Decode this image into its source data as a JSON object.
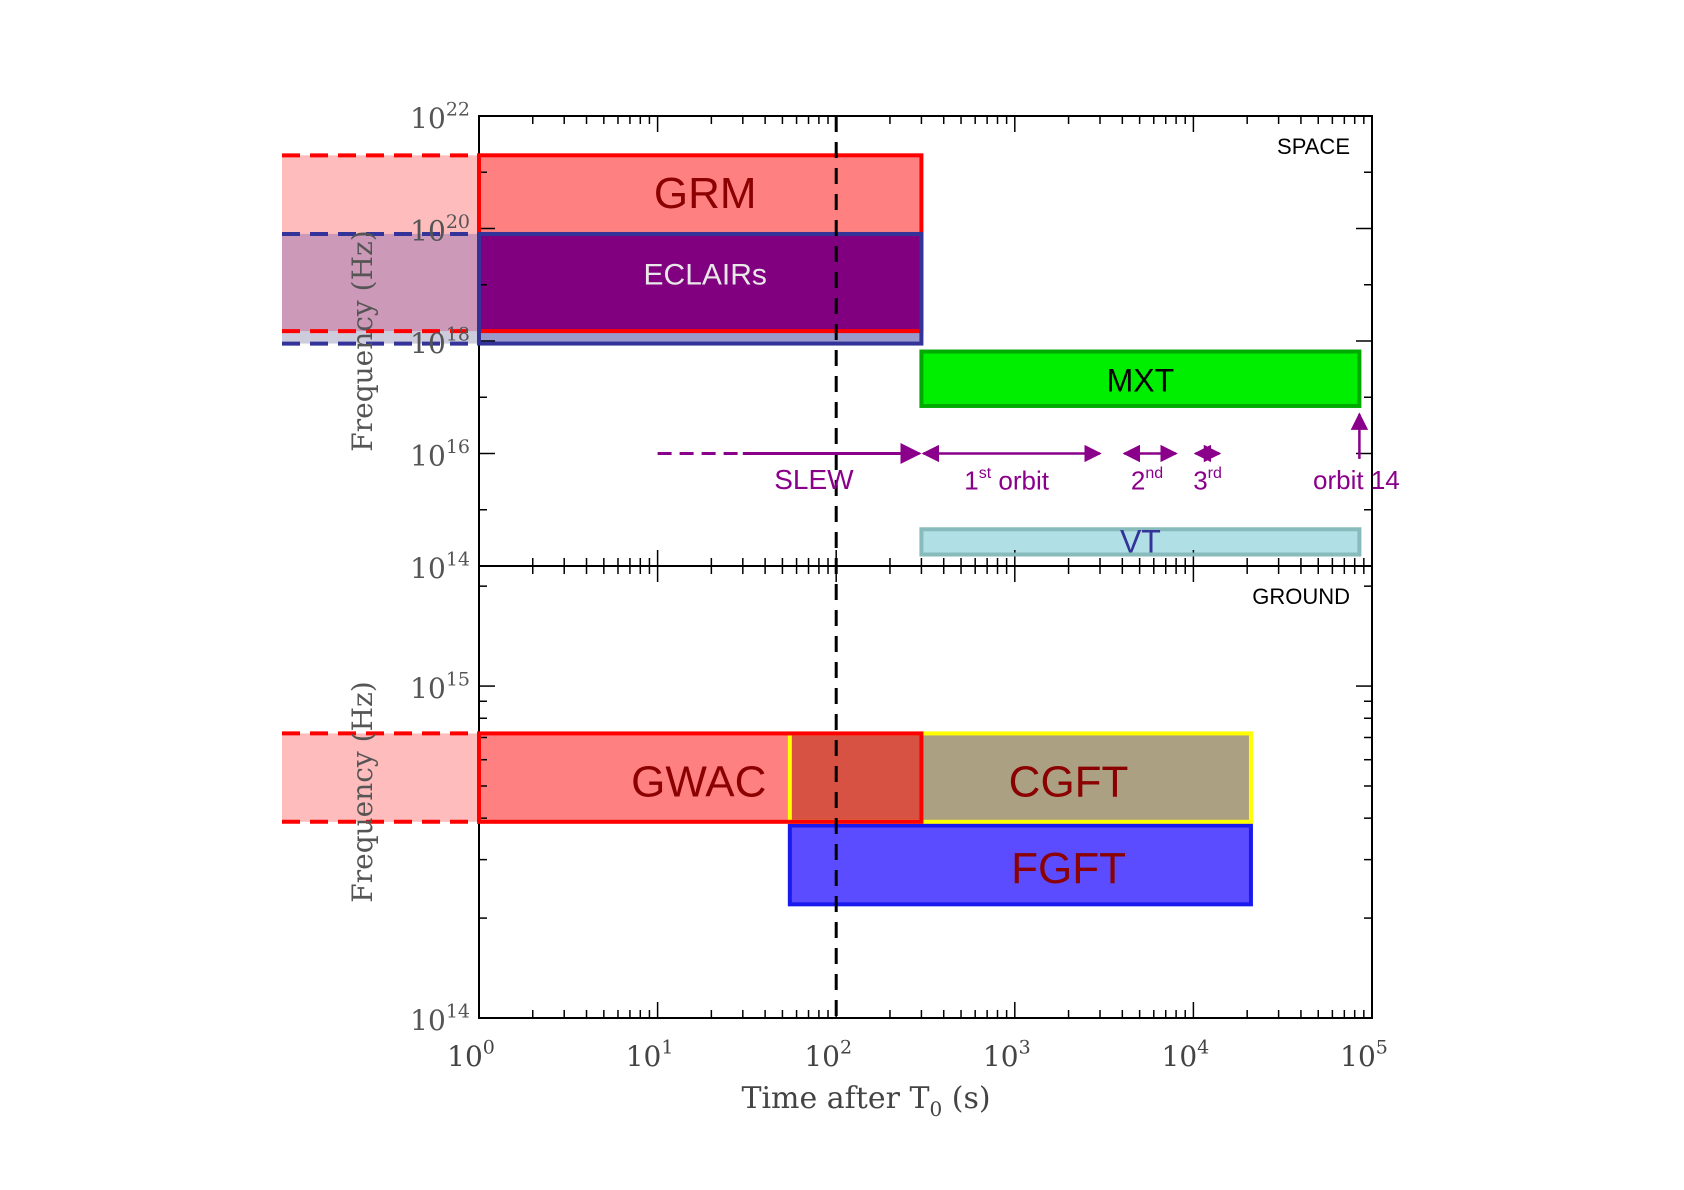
{
  "chart_data": {
    "type": "timeline",
    "x_axis": {
      "label_main": "Time after T",
      "label_sub": "0",
      "label_unit": " (s)",
      "scale": "log",
      "range": [
        1,
        100000
      ],
      "ticks": [
        {
          "value": 1,
          "base": "10",
          "exp": "0"
        },
        {
          "value": 10,
          "base": "10",
          "exp": "1"
        },
        {
          "value": 100,
          "base": "10",
          "exp": "2"
        },
        {
          "value": 1000,
          "base": "10",
          "exp": "3"
        },
        {
          "value": 10000,
          "base": "10",
          "exp": "4"
        },
        {
          "value": 100000,
          "base": "10",
          "exp": "5"
        }
      ]
    },
    "reference_line": {
      "x": 100,
      "style": "dashed"
    },
    "panels": [
      {
        "id": "space",
        "title": "SPACE",
        "ylabel": "Frequency (Hz)",
        "y_scale": "log",
        "y_range": [
          100000000000000.0,
          1e+22
        ],
        "y_ticks": [
          {
            "value": 100000000000000.0,
            "base": "10",
            "exp": "14"
          },
          {
            "value": 1e+16,
            "base": "10",
            "exp": "16"
          },
          {
            "value": 1e+18,
            "base": "10",
            "exp": "18"
          },
          {
            "value": 1e+20,
            "base": "10",
            "exp": "20"
          },
          {
            "value": 1e+22,
            "base": "10",
            "exp": "22"
          }
        ],
        "bands": [
          {
            "name": "GRM",
            "t_start": 1,
            "t_end": 300,
            "f_low": 1.5e+18,
            "f_high": 2e+21,
            "fill": "#ff8080",
            "stroke": "#ff0000",
            "label_color": "#8b0000",
            "label_f": 4.5e+20,
            "extends_before": true,
            "extension_fill": "#ffbcbc"
          },
          {
            "name": "ECLAIRs",
            "t_start": 1,
            "t_end": 300,
            "f_low": 9e+17,
            "f_high": 8e+19,
            "fill": "#9999cc",
            "stroke": "#333399",
            "label_color": "#e8e8e8",
            "label_f": 1.6e+19,
            "extends_before": true,
            "extension_fill": "#ccccdd"
          },
          {
            "name": "MXT",
            "t_start": 300,
            "t_end": 85000,
            "f_low": 7e+16,
            "f_high": 6.5e+17,
            "fill": "#00ee00",
            "stroke": "#00aa00",
            "label_color": "#000000",
            "label_f": 2e+17,
            "extends_before": false
          },
          {
            "name": "VT",
            "t_start": 300,
            "t_end": 85000,
            "f_low": 160000000000000.0,
            "f_high": 450000000000000.0,
            "fill": "#b0e0e6",
            "stroke": "#88bbbb",
            "label_color": "#333399",
            "label_f": 270000000000000.0,
            "extends_before": false
          }
        ],
        "overlap": {
          "t_start": 1,
          "t_end": 300,
          "f_low": 1.5e+18,
          "f_high": 8e+19,
          "fill": "#800080",
          "extension_fill": "#cc99b8"
        },
        "slew": {
          "label": "SLEW",
          "dash_start": 10,
          "solid_start": 30,
          "end": 300,
          "f": 1e+16,
          "label_t": 75,
          "label_f": 3500000000000000.0
        },
        "orbits": [
          {
            "label": "1",
            "sup": "st",
            "suffix": " orbit",
            "t_start": 300,
            "t_end": 3000,
            "label_t": 900
          },
          {
            "label": "2",
            "sup": "nd",
            "suffix": "",
            "t_start": 4000,
            "t_end": 8000,
            "label_t": 5500
          },
          {
            "label": "3",
            "sup": "rd",
            "suffix": "",
            "t_start": 10000,
            "t_end": 14000,
            "label_t": 12000
          }
        ],
        "orbit14": {
          "label": "orbit 14",
          "t": 85000,
          "f_from": 8000000000000000.0,
          "f_to": 5e+16
        },
        "arrow_color": "#8b008b"
      },
      {
        "id": "ground",
        "title": "GROUND",
        "ylabel": "Frequency (Hz)",
        "y_scale": "log",
        "y_range": [
          100000000000000.0,
          2300000000000000.0
        ],
        "y_ticks": [
          {
            "value": 100000000000000.0,
            "base": "10",
            "exp": "14"
          },
          {
            "value": 1000000000000000.0,
            "base": "10",
            "exp": "15"
          }
        ],
        "bands": [
          {
            "name": "FGFT",
            "t_start": 55,
            "t_end": 21000,
            "f_low": 220000000000000.0,
            "f_high": 380000000000000.0,
            "fill": "#5b4cff",
            "stroke": "#1a1aee",
            "label_color": "#8b0000",
            "label_t": 2000,
            "label_f": 285000000000000.0
          },
          {
            "name": "CGFT",
            "t_start": 55,
            "t_end": 21000,
            "f_low": 390000000000000.0,
            "f_high": 720000000000000.0,
            "fill": "#aca083",
            "stroke": "#ffff00",
            "label_color": "#8b0000",
            "label_t": 2000,
            "label_f": 520000000000000.0
          },
          {
            "name": "GWAC",
            "t_start": 1,
            "t_end": 300,
            "f_low": 390000000000000.0,
            "f_high": 720000000000000.0,
            "fill": "#ff8080",
            "stroke": "#ff0000",
            "label_color": "#8b0000",
            "label_t": 17,
            "label_f": 520000000000000.0,
            "extends_before": true,
            "extension_fill": "#ffbcbc"
          }
        ],
        "overlap": {
          "t_start": 55,
          "t_end": 300,
          "f_low": 390000000000000.0,
          "f_high": 720000000000000.0,
          "fill": "#d85244"
        }
      }
    ]
  }
}
